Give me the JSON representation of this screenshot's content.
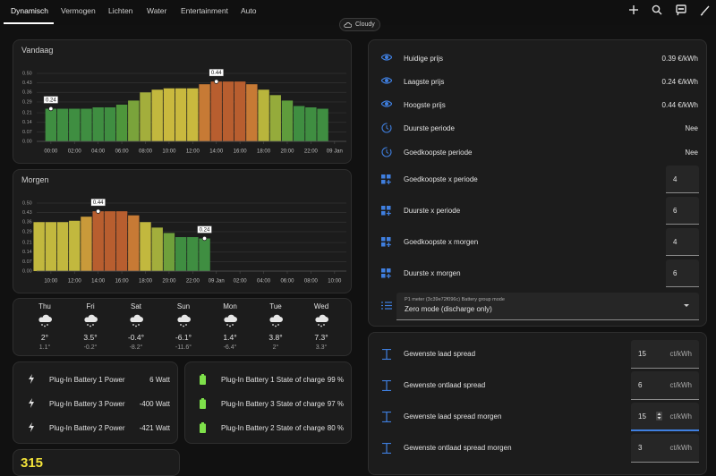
{
  "tabs": [
    "Dynamisch",
    "Vermogen",
    "Lichten",
    "Water",
    "Entertainment",
    "Auto"
  ],
  "weather_chip": "Cloudy",
  "chart_data": [
    {
      "type": "bar",
      "title": "Vandaag",
      "x": [
        0,
        1,
        2,
        3,
        4,
        5,
        6,
        7,
        8,
        9,
        10,
        11,
        12,
        13,
        14,
        15,
        16,
        17,
        18,
        19,
        20,
        21,
        22,
        23
      ],
      "values": [
        0.24,
        0.24,
        0.24,
        0.24,
        0.25,
        0.25,
        0.27,
        0.3,
        0.36,
        0.38,
        0.39,
        0.39,
        0.39,
        0.42,
        0.44,
        0.44,
        0.44,
        0.42,
        0.38,
        0.34,
        0.3,
        0.26,
        0.25,
        0.24
      ],
      "colors": [
        "#3f8e41",
        "#3f8e41",
        "#3f8e41",
        "#3f8e41",
        "#3f8e41",
        "#3f8e41",
        "#4e963b",
        "#7aa33b",
        "#a3ae3c",
        "#c2b83e",
        "#c9b93e",
        "#c9b93e",
        "#c9b93e",
        "#c77a35",
        "#b85e2f",
        "#b85e2f",
        "#b85e2f",
        "#c77a35",
        "#b9b53c",
        "#95ab3b",
        "#5f9c3c",
        "#3f8e41",
        "#3f8e41",
        "#3f8e41"
      ],
      "xlim": [
        -1.2,
        25
      ],
      "xticks": [
        {
          "value": 0,
          "label": "00:00"
        },
        {
          "value": 2,
          "label": "02:00"
        },
        {
          "value": 4,
          "label": "04:00"
        },
        {
          "value": 6,
          "label": "06:00"
        },
        {
          "value": 8,
          "label": "08:00"
        },
        {
          "value": 10,
          "label": "10:00"
        },
        {
          "value": 12,
          "label": "12:00"
        },
        {
          "value": 14,
          "label": "14:00"
        },
        {
          "value": 16,
          "label": "16:00"
        },
        {
          "value": 18,
          "label": "18:00"
        },
        {
          "value": 20,
          "label": "20:00"
        },
        {
          "value": 22,
          "label": "22:00"
        },
        {
          "value": 24,
          "label": "09 Jan"
        }
      ],
      "ylim": [
        0,
        0.5
      ],
      "yticks": [
        {
          "value": 0,
          "label": "0.00"
        },
        0.07,
        0.14,
        0.21,
        0.29,
        0.36,
        0.43,
        {
          "value": 0.5,
          "label": "0.50"
        }
      ],
      "grid": true,
      "annotations": [
        {
          "x": 0,
          "text": "0.24"
        },
        {
          "x": 14,
          "text": "0.44"
        }
      ]
    },
    {
      "type": "bar",
      "title": "Morgen",
      "x": [
        9,
        10,
        11,
        12,
        13,
        14,
        15,
        16,
        17,
        18,
        19,
        20,
        21,
        22,
        23
      ],
      "values": [
        0.36,
        0.36,
        0.36,
        0.37,
        0.4,
        0.44,
        0.44,
        0.44,
        0.41,
        0.36,
        0.32,
        0.28,
        0.25,
        0.25,
        0.24
      ],
      "colors": [
        "#c2b83e",
        "#c2b83e",
        "#c2b83e",
        "#c2b83e",
        "#c99a3a",
        "#b85e2f",
        "#b85e2f",
        "#b85e2f",
        "#c77a35",
        "#c2b83e",
        "#a3ae3c",
        "#6fa03b",
        "#3f8e41",
        "#3f8e41",
        "#3f8e41"
      ],
      "xlim": [
        8.8,
        35
      ],
      "xticks": [
        {
          "value": 10,
          "label": "10:00"
        },
        {
          "value": 12,
          "label": "12:00"
        },
        {
          "value": 14,
          "label": "14:00"
        },
        {
          "value": 16,
          "label": "16:00"
        },
        {
          "value": 18,
          "label": "18:00"
        },
        {
          "value": 20,
          "label": "20:00"
        },
        {
          "value": 22,
          "label": "22:00"
        },
        {
          "value": 24,
          "label": "09 Jan"
        },
        {
          "value": 26,
          "label": "02:00"
        },
        {
          "value": 28,
          "label": "04:00"
        },
        {
          "value": 30,
          "label": "06:00"
        },
        {
          "value": 32,
          "label": "08:00"
        },
        {
          "value": 34,
          "label": "10:00"
        }
      ],
      "ylim": [
        0,
        0.5
      ],
      "yticks": [
        {
          "value": 0,
          "label": "0.00"
        },
        0.07,
        0.14,
        0.21,
        0.29,
        0.36,
        0.43,
        {
          "value": 0.5,
          "label": "0.50"
        }
      ],
      "grid": true,
      "annotations": [
        {
          "x": 14,
          "text": "0.44"
        },
        {
          "x": 23,
          "text": "0.24"
        }
      ]
    }
  ],
  "forecast": [
    {
      "day": "Thu",
      "high": "2°",
      "low": "1.1°"
    },
    {
      "day": "Fri",
      "high": "3.5°",
      "low": "-0.2°"
    },
    {
      "day": "Sat",
      "high": "-0.4°",
      "low": "-8.2°"
    },
    {
      "day": "Sun",
      "high": "-6.1°",
      "low": "-11.6°"
    },
    {
      "day": "Mon",
      "high": "1.4°",
      "low": "-6.4°"
    },
    {
      "day": "Tue",
      "high": "3.8°",
      "low": "2°"
    },
    {
      "day": "Wed",
      "high": "7.3°",
      "low": "3.3°"
    }
  ],
  "power": [
    {
      "name": "Plug-In Battery 1 Power",
      "value": "6 Watt"
    },
    {
      "name": "Plug-In Battery 3 Power",
      "value": "-400 Watt"
    },
    {
      "name": "Plug-In Battery 2 Power",
      "value": "-421 Watt"
    }
  ],
  "charge": [
    {
      "name": "Plug-In Battery 1 State of charge",
      "value": "99 %"
    },
    {
      "name": "Plug-In Battery 3 State of charge",
      "value": "97 %"
    },
    {
      "name": "Plug-In Battery 2 State of charge",
      "value": "80 %"
    }
  ],
  "prices": [
    {
      "name": "Huidige prijs",
      "value": "0.39 €/kWh"
    },
    {
      "name": "Laagste prijs",
      "value": "0.24 €/kWh"
    },
    {
      "name": "Hoogste prijs",
      "value": "0.44 €/kWh"
    },
    {
      "name": "Duurste periode",
      "value": "Nee"
    },
    {
      "name": "Goedkoopste periode",
      "value": "Nee"
    }
  ],
  "periods": [
    {
      "name": "Goedkoopste x periode",
      "value": "4"
    },
    {
      "name": "Duurste x periode",
      "value": "6"
    },
    {
      "name": "Goedkoopste x morgen",
      "value": "4"
    },
    {
      "name": "Duurste x morgen",
      "value": "6"
    }
  ],
  "select": {
    "label": "P1 meter (3c39e72f096c) Battery group mode",
    "value": "Zero mode (discharge only)"
  },
  "spreads": [
    {
      "name": "Gewenste laad spread",
      "value": "15",
      "unit": "ct/kWh"
    },
    {
      "name": "Gewenste ontlaad spread",
      "value": "6",
      "unit": "ct/kWh"
    },
    {
      "name": "Gewenste laad spread morgen",
      "value": "15",
      "unit": "ct/kWh"
    },
    {
      "name": "Gewenste ontlaad spread morgen",
      "value": "3",
      "unit": "ct/kWh"
    }
  ],
  "bottom_value": "315"
}
